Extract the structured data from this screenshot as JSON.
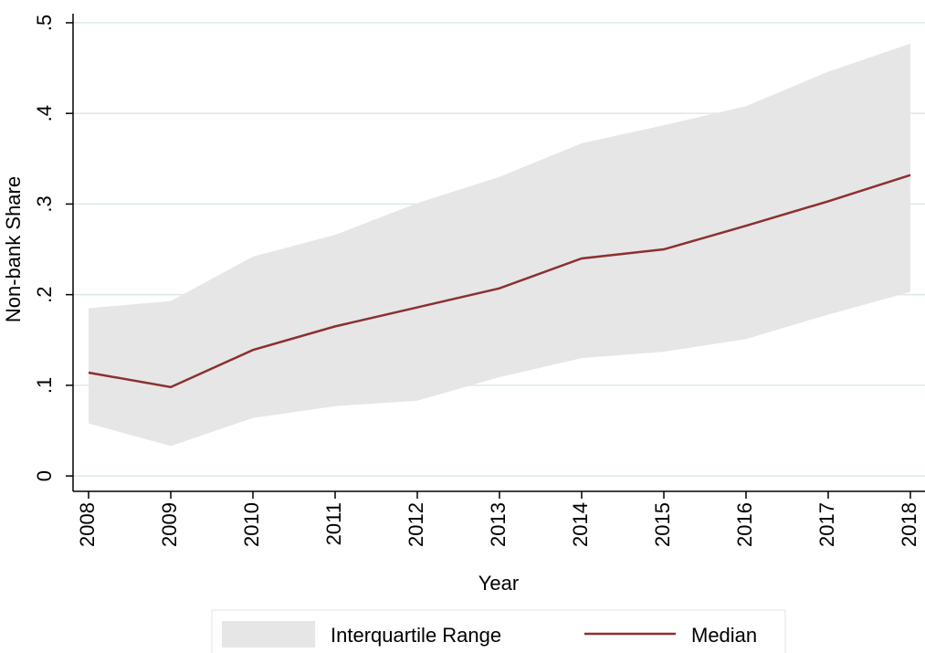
{
  "chart_data": {
    "type": "band-line",
    "x_label": "Year",
    "y_label": "Non-bank Share",
    "categories": [
      "2008",
      "2009",
      "2010",
      "2011",
      "2012",
      "2013",
      "2014",
      "2015",
      "2016",
      "2017",
      "2018"
    ],
    "series": [
      {
        "name": "Interquartile Range",
        "color": "#e6e6e6",
        "lower": [
          0.058,
          0.033,
          0.064,
          0.077,
          0.083,
          0.109,
          0.13,
          0.137,
          0.151,
          0.178,
          0.203
        ],
        "upper": [
          0.185,
          0.193,
          0.242,
          0.266,
          0.301,
          0.33,
          0.367,
          0.387,
          0.408,
          0.446,
          0.477
        ]
      },
      {
        "name": "Median",
        "color": "#8b3030",
        "values": [
          0.114,
          0.098,
          0.139,
          0.165,
          0.186,
          0.207,
          0.24,
          0.25,
          0.276,
          0.303,
          0.332
        ]
      }
    ],
    "ylim": [
      -0.017,
      0.51
    ],
    "yticks": [
      0,
      {
        "value": 0.1,
        "label": ".1"
      },
      {
        "value": 0.2,
        "label": ".2"
      },
      {
        "value": 0.3,
        "label": ".3"
      },
      {
        "value": 0.4,
        "label": ".4"
      },
      {
        "value": 0.5,
        "label": ".5"
      }
    ],
    "grid": true
  }
}
